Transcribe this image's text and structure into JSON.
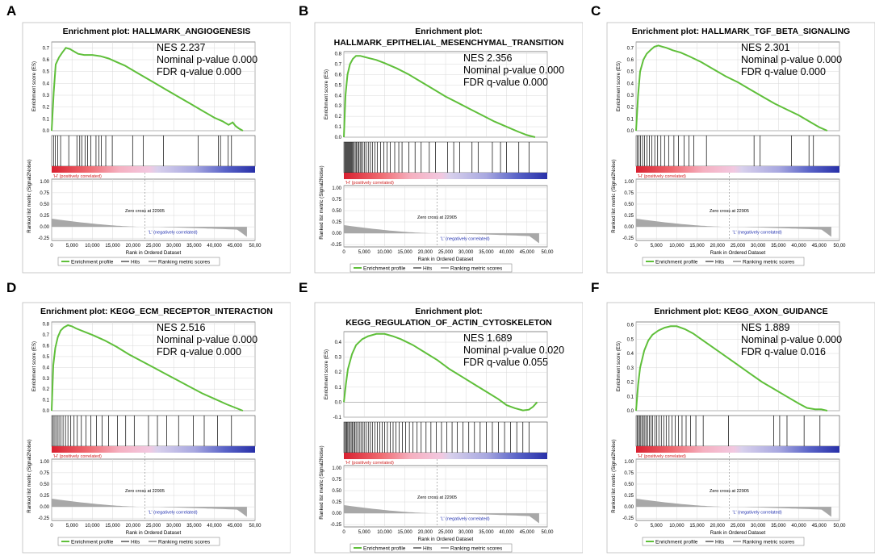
{
  "colors": {
    "curve": "#5fbf3a",
    "pos_label": "#d02020",
    "neg_label": "#2030b0",
    "ranked_fill": "#a8a8a8",
    "grid": "#d8d8d8"
  },
  "common": {
    "es_ylabel": "Enrichment score (ES)",
    "rank_ylabel": "Ranked list metric (Signal2Noise)",
    "xlabel": "Rank in Ordered Dataset",
    "pos_label": "'H' (positively correlated)",
    "neg_label": "'L' (negatively correlated)",
    "zero_cross": "Zero cross at 22905",
    "legend": [
      "Enrichment profile",
      "Hits",
      "Ranking metric scores"
    ],
    "x_ticks": [
      "0",
      "5,000",
      "10,000",
      "15,000",
      "20,000",
      "25,000",
      "30,000",
      "35,000",
      "40,000",
      "45,000",
      "50,00"
    ],
    "rank_ticks": [
      "1.00",
      "0.75",
      "0.50",
      "0.25",
      "0.00",
      "-0.25"
    ]
  },
  "chart_data": [
    {
      "panel": "A",
      "type": "line",
      "title_line1": "Enrichment plot: HALLMARK_ANGIOGENESIS",
      "title_line2": "",
      "nes": "NES 2.237",
      "pval": "Nominal p-value 0.000",
      "fdr": "FDR q-value 0.000",
      "es_ticks": [
        "0.7",
        "0.6",
        "0.5",
        "0.4",
        "0.3",
        "0.2",
        "0.1",
        "0.0"
      ],
      "ylim": [
        0,
        0.75
      ],
      "xlim": [
        0,
        50000
      ],
      "curve_x": [
        0,
        500,
        1000,
        1800,
        2600,
        3500,
        4500,
        5500,
        6500,
        8000,
        10000,
        12000,
        14000,
        16000,
        18000,
        20000,
        22000,
        25000,
        28000,
        31000,
        34000,
        37000,
        40000,
        42000,
        43500,
        44500,
        45200,
        46000,
        47000
      ],
      "curve_y": [
        0,
        0.32,
        0.56,
        0.62,
        0.66,
        0.7,
        0.69,
        0.67,
        0.65,
        0.64,
        0.64,
        0.63,
        0.61,
        0.58,
        0.55,
        0.51,
        0.47,
        0.41,
        0.35,
        0.29,
        0.23,
        0.17,
        0.11,
        0.08,
        0.05,
        0.07,
        0.04,
        0.02,
        0.0
      ],
      "hits": [
        450,
        900,
        1500,
        2200,
        4200,
        6200,
        6900,
        7400,
        8200,
        8800,
        9600,
        10900,
        11600,
        12200,
        13300,
        14900,
        19900,
        22500,
        27500,
        36000,
        41000,
        41500,
        43400,
        44200
      ]
    },
    {
      "panel": "B",
      "type": "line",
      "title_line1": "Enrichment plot:",
      "title_line2": "HALLMARK_EPITHELIAL_MESENCHYMAL_TRANSITION",
      "nes": "NES 2.356",
      "pval": "Nominal p-value 0.000",
      "fdr": "FDR q-value 0.000",
      "es_ticks": [
        "0.8",
        "0.7",
        "0.6",
        "0.5",
        "0.4",
        "0.3",
        "0.2",
        "0.1",
        "0.0"
      ],
      "ylim": [
        0,
        0.82
      ],
      "xlim": [
        0,
        50000
      ],
      "curve_x": [
        0,
        400,
        900,
        1500,
        2200,
        3000,
        4000,
        5000,
        6000,
        8000,
        10000,
        13000,
        16000,
        19000,
        22000,
        25000,
        28000,
        31000,
        34000,
        37000,
        40000,
        43000,
        45000,
        47000
      ],
      "curve_y": [
        0,
        0.4,
        0.6,
        0.7,
        0.75,
        0.78,
        0.78,
        0.77,
        0.76,
        0.74,
        0.71,
        0.66,
        0.6,
        0.53,
        0.46,
        0.39,
        0.33,
        0.27,
        0.21,
        0.15,
        0.1,
        0.05,
        0.02,
        0.0
      ],
      "hits": [
        200,
        400,
        600,
        800,
        1000,
        1200,
        1400,
        1600,
        1800,
        2000,
        2200,
        2500,
        2800,
        3100,
        3400,
        3700,
        4000,
        4300,
        4700,
        5100,
        5500,
        6000,
        6500,
        7000,
        7600,
        8200,
        9000,
        9800,
        10600,
        11400,
        12500,
        13500,
        14300,
        16000,
        17500,
        19000,
        21000,
        22500,
        25500,
        27000,
        28500,
        31500,
        33000,
        36500,
        38500,
        40000,
        43000,
        45500
      ]
    },
    {
      "panel": "C",
      "type": "line",
      "title_line1": "Enrichment plot: HALLMARK_TGF_BETA_SIGNALING",
      "title_line2": "",
      "nes": "NES 2.301",
      "pval": "Nominal p-value 0.000",
      "fdr": "FDR q-value 0.000",
      "es_ticks": [
        "0.7",
        "0.6",
        "0.5",
        "0.4",
        "0.3",
        "0.2",
        "0.1",
        "0.0"
      ],
      "ylim": [
        0,
        0.75
      ],
      "xlim": [
        0,
        50000
      ],
      "curve_x": [
        0,
        500,
        1000,
        1800,
        2600,
        3500,
        4500,
        5500,
        6500,
        7500,
        9000,
        11000,
        13000,
        16000,
        19000,
        22000,
        25000,
        28000,
        31000,
        34000,
        37000,
        40000,
        43000,
        45000,
        47000
      ],
      "curve_y": [
        0,
        0.3,
        0.5,
        0.6,
        0.65,
        0.68,
        0.71,
        0.72,
        0.71,
        0.7,
        0.68,
        0.66,
        0.63,
        0.58,
        0.52,
        0.46,
        0.41,
        0.35,
        0.29,
        0.23,
        0.18,
        0.13,
        0.07,
        0.03,
        0.0
      ],
      "hits": [
        300,
        700,
        1100,
        1600,
        2100,
        2700,
        3300,
        3900,
        4600,
        5300,
        6100,
        7000,
        8000,
        9300,
        10400,
        11800,
        13000,
        14200,
        17300,
        29000,
        30500,
        38200,
        42500,
        43600
      ]
    },
    {
      "panel": "D",
      "type": "line",
      "title_line1": "Enrichment plot: KEGG_ECM_RECEPTOR_INTERACTION",
      "title_line2": "",
      "nes": "NES 2.516",
      "pval": "Nominal p-value 0.000",
      "fdr": "FDR q-value 0.000",
      "es_ticks": [
        "0.8",
        "0.7",
        "0.6",
        "0.5",
        "0.4",
        "0.3",
        "0.2",
        "0.1",
        "0.0"
      ],
      "ylim": [
        0,
        0.82
      ],
      "xlim": [
        0,
        50000
      ],
      "curve_x": [
        0,
        400,
        900,
        1500,
        2200,
        3000,
        4000,
        5000,
        6000,
        8000,
        10000,
        13000,
        16000,
        19000,
        22000,
        25000,
        28000,
        31000,
        34000,
        37000,
        40000,
        43000,
        45000,
        47000
      ],
      "curve_y": [
        0,
        0.42,
        0.58,
        0.68,
        0.74,
        0.77,
        0.79,
        0.78,
        0.76,
        0.73,
        0.7,
        0.65,
        0.59,
        0.52,
        0.46,
        0.4,
        0.34,
        0.28,
        0.22,
        0.16,
        0.11,
        0.06,
        0.03,
        0.0
      ],
      "hits": [
        250,
        600,
        1000,
        1400,
        1800,
        2300,
        2800,
        3400,
        4000,
        4700,
        5500,
        6300,
        7300,
        8400,
        9600,
        11000,
        12400,
        14000,
        16200,
        18200,
        20300,
        23800,
        26000,
        28300,
        31200,
        34800,
        37500,
        40800,
        44200
      ]
    },
    {
      "panel": "E",
      "type": "line",
      "title_line1": "Enrichment plot:",
      "title_line2": "KEGG_REGULATION_OF_ACTIN_CYTOSKELETON",
      "nes": "NES 1.689",
      "pval": "Nominal p-value 0.020",
      "fdr": "FDR q-value 0.055",
      "es_ticks": [
        "0.4",
        "0.3",
        "0.2",
        "0.1",
        "0.0",
        "-0.1"
      ],
      "ylim": [
        -0.1,
        0.47
      ],
      "xlim": [
        0,
        50000
      ],
      "curve_x": [
        0,
        500,
        1000,
        2000,
        3000,
        4500,
        6000,
        8000,
        10000,
        12000,
        14000,
        17000,
        20000,
        23000,
        26000,
        29000,
        32000,
        35000,
        38000,
        40000,
        42000,
        44000,
        45500,
        46500,
        47500
      ],
      "curve_y": [
        0,
        0.12,
        0.22,
        0.32,
        0.38,
        0.42,
        0.44,
        0.455,
        0.455,
        0.44,
        0.42,
        0.38,
        0.33,
        0.28,
        0.22,
        0.17,
        0.12,
        0.07,
        0.02,
        -0.02,
        -0.04,
        -0.055,
        -0.05,
        -0.03,
        0.0
      ],
      "hits": [
        200,
        450,
        700,
        950,
        1200,
        1500,
        1800,
        2100,
        2400,
        2700,
        3000,
        3400,
        3800,
        4200,
        4600,
        5000,
        5500,
        6000,
        6500,
        7000,
        7600,
        8200,
        8800,
        9400,
        10000,
        10700,
        11400,
        12100,
        12800,
        13600,
        14400,
        15200,
        16100,
        17000,
        18000,
        19000,
        20200,
        21400,
        22700,
        24000,
        25300,
        26600,
        27900,
        29300,
        30700,
        32100,
        33500,
        35000,
        36500,
        38000,
        39500,
        41000,
        42500,
        44000,
        45500
      ]
    },
    {
      "panel": "F",
      "type": "line",
      "title_line1": "Enrichment plot: KEGG_AXON_GUIDANCE",
      "title_line2": "",
      "nes": "NES 1.889",
      "pval": "Nominal p-value 0.000",
      "fdr": "FDR q-value 0.016",
      "es_ticks": [
        "0.6",
        "0.5",
        "0.4",
        "0.3",
        "0.2",
        "0.1",
        "0.0"
      ],
      "ylim": [
        0,
        0.62
      ],
      "xlim": [
        0,
        50000
      ],
      "curve_x": [
        0,
        500,
        1000,
        2000,
        3000,
        4000,
        5500,
        7000,
        8500,
        10000,
        12000,
        14000,
        16000,
        19000,
        22000,
        25000,
        28000,
        31000,
        34000,
        37000,
        40000,
        42000,
        44000,
        45500,
        47000
      ],
      "curve_y": [
        0,
        0.18,
        0.3,
        0.42,
        0.49,
        0.53,
        0.56,
        0.58,
        0.59,
        0.59,
        0.57,
        0.54,
        0.5,
        0.44,
        0.38,
        0.32,
        0.26,
        0.2,
        0.15,
        0.1,
        0.05,
        0.02,
        0.01,
        0.01,
        0.0
      ],
      "hits": [
        250,
        550,
        850,
        1150,
        1450,
        1800,
        2150,
        2500,
        2900,
        3300,
        3700,
        4100,
        4600,
        5100,
        5600,
        6200,
        6800,
        7400,
        8100,
        8800,
        9600,
        10400,
        11300,
        12300,
        13400,
        14700,
        16500,
        22700,
        33800,
        35300,
        37100,
        41300,
        45200
      ]
    }
  ]
}
